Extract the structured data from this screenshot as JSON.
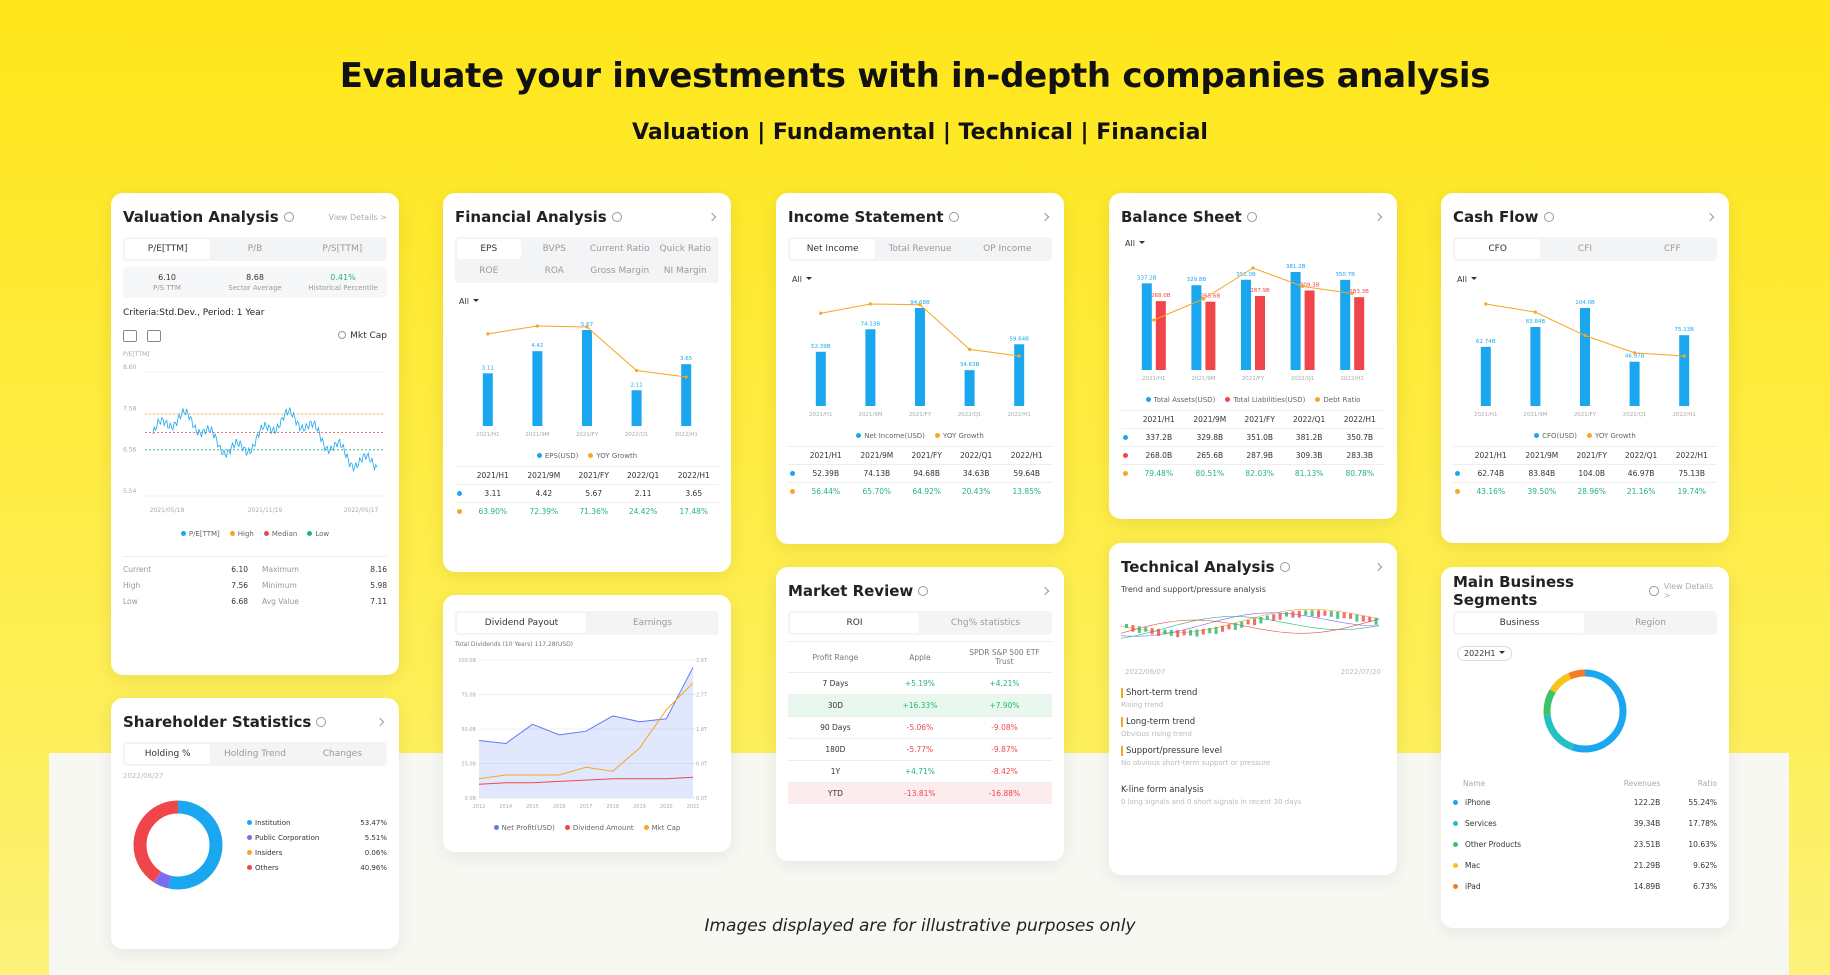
{
  "header": {
    "title": "Evaluate your investments with in-depth companies analysis",
    "subtitle": "Valuation | Fundamental | Technical | Financial"
  },
  "footnote": "Images displayed are for illustrative purposes only",
  "valuation": {
    "title": "Valuation Analysis",
    "link": "View Details >",
    "tabs": [
      "P/E[TTM]",
      "P/B",
      "P/S[TTM]"
    ],
    "stats": [
      {
        "value": "6.10",
        "label": "P/S TTM"
      },
      {
        "value": "8.68",
        "label": "Sector Average"
      },
      {
        "value": "0.41%",
        "label": "Historical Percentile"
      }
    ],
    "criteria": "Criteria:Std.Dev., Period: 1 Year",
    "toggle": "Mkt Cap",
    "axis_label": "P/E[TTM]",
    "ylim": [
      5.54,
      8.6
    ],
    "yticks": [
      {
        "value": 8.6,
        "label": "8.60"
      },
      {
        "value": 7.58,
        "label": "7.58"
      },
      {
        "value": 6.56,
        "label": "6.56"
      },
      {
        "value": 5.54,
        "label": "5.54"
      }
    ],
    "dates": [
      "2021/05/18",
      "2021/11/19",
      "2022/05/17"
    ],
    "legend": [
      {
        "name": "P/E[TTM]",
        "color": "#1aa7f0"
      },
      {
        "name": "High",
        "color": "#f5a623"
      },
      {
        "name": "Median",
        "color": "#f0464b"
      },
      {
        "name": "Low",
        "color": "#22b573"
      }
    ],
    "summary": [
      {
        "name": "Current",
        "value": 6.1,
        "label": "6.10"
      },
      {
        "name": "Maximum",
        "value": 8.16,
        "label": "8.16"
      },
      {
        "name": "High",
        "value": 7.56,
        "label": "7.56"
      },
      {
        "name": "Minimum",
        "value": 5.98,
        "label": "5.98"
      },
      {
        "name": "Low",
        "value": 6.68,
        "label": "6.68"
      },
      {
        "name": "Avg Value",
        "value": 7.11,
        "label": "7.11"
      }
    ]
  },
  "shareholder": {
    "title": "Shareholder Statistics",
    "tabs": [
      "Holding %",
      "Holding Trend",
      "Changes"
    ],
    "date": "2022/06/27",
    "segments": [
      {
        "name": "Institution",
        "value": 53.47,
        "label": "53.47%",
        "color": "#1aa7f0"
      },
      {
        "name": "Public Corporation",
        "value": 5.51,
        "label": "5.51%",
        "color": "#7b6cf0"
      },
      {
        "name": "Insiders",
        "value": 0.06,
        "label": "0.06%",
        "color": "#f5a623"
      },
      {
        "name": "Others",
        "value": 40.96,
        "label": "40.96%",
        "color": "#f0464b"
      }
    ]
  },
  "financial_analysis": {
    "title": "Financial Analysis",
    "tabs": [
      "EPS",
      "BVPS",
      "Current Ratio",
      "Quick Ratio",
      "ROE",
      "ROA",
      "Gross Margin",
      "NI Margin"
    ],
    "filter": "All",
    "categories": [
      "2021/H1",
      "2021/9M",
      "2021/FY",
      "2022/Q1",
      "2022/H1"
    ],
    "series": [
      {
        "name": "EPS(USD)",
        "type": "bar",
        "color": "#1aa7f0",
        "values": [
          3.11,
          4.42,
          5.67,
          2.11,
          3.65
        ]
      },
      {
        "name": "YOY Growth",
        "type": "line",
        "color": "#f5a623",
        "values": [
          63.9,
          72.39,
          71.36,
          24.42,
          17.48
        ],
        "value_labels": [
          "63.90%",
          "72.39%",
          "71.36%",
          "24.42%",
          "17.48%"
        ]
      }
    ]
  },
  "dividend": {
    "tabs": [
      "Dividend Payout",
      "Earnings"
    ],
    "total": "Total Dividends (10 Years) 117.28(USD)",
    "categories": [
      "2012",
      "2014",
      "2015",
      "2016",
      "2017",
      "2018",
      "2019",
      "2020",
      "2021"
    ],
    "ylim": [
      0,
      100
    ],
    "yticks": [
      {
        "value": 100,
        "label": "100.0B"
      },
      {
        "value": 75,
        "label": "75.0B"
      },
      {
        "value": 50,
        "label": "50.0B"
      },
      {
        "value": 25,
        "label": "25.0B"
      },
      {
        "value": 0,
        "label": "0.0B"
      }
    ],
    "y2lim": [
      0,
      3.6
    ],
    "y2ticks": [
      {
        "value": 3.6,
        "label": "3.6T"
      },
      {
        "value": 2.7,
        "label": "2.7T"
      },
      {
        "value": 1.8,
        "label": "1.8T"
      },
      {
        "value": 0.9,
        "label": "0.9T"
      },
      {
        "value": 0,
        "label": "0.0T"
      }
    ],
    "series": [
      {
        "name": "Net Profit(USD)",
        "type": "area",
        "color": "#5b7cf0",
        "values": [
          41.7,
          39.5,
          53.4,
          45.7,
          48.4,
          59.5,
          55.3,
          57.4,
          94.7
        ]
      },
      {
        "name": "Dividend Amount",
        "type": "line",
        "color": "#f0464b",
        "values": [
          10,
          11,
          11,
          12,
          13,
          14,
          14,
          14,
          15
        ]
      },
      {
        "name": "Mkt Cap",
        "type": "line",
        "axis": "y2",
        "color": "#f5a623",
        "values": [
          0.5,
          0.6,
          0.6,
          0.6,
          0.8,
          0.7,
          1.3,
          2.3,
          3.0
        ]
      }
    ]
  },
  "income_statement": {
    "title": "Income Statement",
    "tabs": [
      "Net Income",
      "Total Revenue",
      "OP Income"
    ],
    "filter": "All",
    "categories": [
      "2021/H1",
      "2021/9M",
      "2021/FY",
      "2022/Q1",
      "2022/H1"
    ],
    "series": [
      {
        "name": "Net Income(USD)",
        "type": "bar",
        "color": "#1aa7f0",
        "values": [
          52.39,
          74.13,
          94.68,
          34.63,
          59.64
        ],
        "value_labels": [
          "52.39B",
          "74.13B",
          "94.68B",
          "34.63B",
          "59.64B"
        ]
      },
      {
        "name": "YOY Growth",
        "type": "line",
        "color": "#f5a623",
        "values": [
          56.44,
          65.7,
          64.92,
          20.43,
          13.85
        ],
        "value_labels": [
          "56.44%",
          "65.70%",
          "64.92%",
          "20.43%",
          "13.85%"
        ]
      }
    ]
  },
  "market_review": {
    "title": "Market Review",
    "tabs": [
      "ROI",
      "Chg% statistics"
    ],
    "columns": [
      "Profit Range",
      "Apple",
      "SPDR S&P 500 ETF Trust"
    ],
    "rows": [
      [
        "7 Days",
        "+5.19%",
        "+4.21%"
      ],
      [
        "30D",
        "+16.33%",
        "+7.90%"
      ],
      [
        "90 Days",
        "-5.06%",
        "-9.08%"
      ],
      [
        "180D",
        "-5.77%",
        "-9.87%"
      ],
      [
        "1Y",
        "+4.71%",
        "-8.42%"
      ],
      [
        "YTD",
        "-13.81%",
        "-16.88%"
      ]
    ],
    "highlighted_rows": [
      1,
      5
    ]
  },
  "balance_sheet": {
    "title": "Balance Sheet",
    "filter": "All",
    "categories": [
      "2021/H1",
      "2021/9M",
      "2021/FY",
      "2022/Q1",
      "2022/H1"
    ],
    "series": [
      {
        "name": "Total Assets(USD)",
        "type": "bar",
        "color": "#1aa7f0",
        "values": [
          337.2,
          329.8,
          351.0,
          381.2,
          350.7
        ],
        "value_labels": [
          "337.2B",
          "329.8B",
          "351.0B",
          "381.2B",
          "350.7B"
        ]
      },
      {
        "name": "Total Liabilities(USD)",
        "type": "bar",
        "color": "#f0464b",
        "values": [
          268.0,
          265.6,
          287.9,
          309.3,
          283.3
        ],
        "value_labels": [
          "268.0B",
          "265.6B",
          "287.9B",
          "309.3B",
          "283.3B"
        ]
      },
      {
        "name": "Debt Ratio",
        "type": "line",
        "color": "#f5a623",
        "values": [
          79.48,
          80.51,
          82.03,
          81.13,
          80.78
        ],
        "value_labels": [
          "79.48%",
          "80.51%",
          "82.03%",
          "81.13%",
          "80.78%"
        ]
      }
    ]
  },
  "technical": {
    "title": "Technical Analysis",
    "subtitle": "Trend and support/pressure analysis",
    "dates": [
      "2022/06/07",
      "2022/07/20"
    ],
    "items": [
      {
        "title": "Short-term trend",
        "desc": "Rising trend"
      },
      {
        "title": "Long-term trend",
        "desc": "Obvious rising trend"
      },
      {
        "title": "Support/pressure level",
        "desc": "No obvious short-term support or pressure"
      },
      {
        "title": "K-line form analysis",
        "desc": "0 long signals and 0 short signals in recent 30 days"
      }
    ]
  },
  "cash_flow": {
    "title": "Cash Flow",
    "tabs": [
      "CFO",
      "CFI",
      "CFF"
    ],
    "filter": "All",
    "categories": [
      "2021/H1",
      "2021/9M",
      "2021/FY",
      "2022/Q1",
      "2022/H1"
    ],
    "series": [
      {
        "name": "CFO(USD)",
        "type": "bar",
        "color": "#1aa7f0",
        "values": [
          62.74,
          83.84,
          104.0,
          46.97,
          75.13
        ],
        "value_labels": [
          "62.74B",
          "83.84B",
          "104.0B",
          "46.97B",
          "75.13B"
        ]
      },
      {
        "name": "YOY Growth",
        "type": "line",
        "color": "#f5a623",
        "values": [
          43.16,
          39.5,
          28.96,
          21.16,
          19.74
        ],
        "value_labels": [
          "43.16%",
          "39.50%",
          "28.96%",
          "21.16%",
          "19.74%"
        ]
      }
    ]
  },
  "segments": {
    "title": "Main Business Segments",
    "link": "View Details >",
    "tabs": [
      "Business",
      "Region"
    ],
    "period": "2022H1",
    "columns": [
      "Name",
      "Revenues",
      "Ratio"
    ],
    "rows": [
      {
        "name": "iPhone",
        "revenue": "122.2B",
        "value": 55.24,
        "label": "55.24%",
        "color": "#1aa7f0"
      },
      {
        "name": "Services",
        "revenue": "39.34B",
        "value": 17.78,
        "label": "17.78%",
        "color": "#22c1c3"
      },
      {
        "name": "Other Products",
        "revenue": "23.51B",
        "value": 10.63,
        "label": "10.63%",
        "color": "#3cc26a"
      },
      {
        "name": "Mac",
        "revenue": "21.29B",
        "value": 9.62,
        "label": "9.62%",
        "color": "#f7c31a"
      },
      {
        "name": "iPad",
        "revenue": "14.89B",
        "value": 6.73,
        "label": "6.73%",
        "color": "#f57c23"
      }
    ]
  }
}
